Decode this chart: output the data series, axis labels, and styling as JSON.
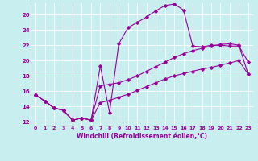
{
  "xlabel": "Windchill (Refroidissement éolien,°C)",
  "bg_color": "#c8eef0",
  "line_color": "#990099",
  "grid_color": "#aadddd",
  "xlim": [
    -0.5,
    23.5
  ],
  "ylim": [
    11.5,
    27.5
  ],
  "xticks": [
    0,
    1,
    2,
    3,
    4,
    5,
    6,
    7,
    8,
    9,
    10,
    11,
    12,
    13,
    14,
    15,
    16,
    17,
    18,
    19,
    20,
    21,
    22,
    23
  ],
  "yticks": [
    12,
    14,
    16,
    18,
    20,
    22,
    24,
    26
  ],
  "line1_x": [
    0,
    1,
    2,
    3,
    4,
    5,
    6,
    7,
    8,
    9,
    10,
    11,
    12,
    13,
    14,
    15,
    16,
    17,
    18,
    19,
    20,
    21,
    22,
    23
  ],
  "line1_y": [
    15.5,
    14.7,
    13.8,
    13.5,
    12.2,
    12.5,
    12.2,
    19.3,
    13.2,
    22.2,
    24.3,
    25.0,
    25.7,
    26.5,
    27.2,
    27.4,
    26.6,
    21.9,
    21.8,
    22.0,
    22.0,
    21.9,
    21.9,
    19.8
  ],
  "line2_x": [
    0,
    1,
    2,
    3,
    4,
    5,
    6,
    7,
    8,
    9,
    10,
    11,
    12,
    13,
    14,
    15,
    16,
    17,
    18,
    19,
    20,
    21,
    22,
    23
  ],
  "line2_y": [
    15.5,
    14.7,
    13.8,
    13.5,
    12.2,
    12.5,
    12.2,
    16.7,
    16.9,
    17.1,
    17.5,
    18.0,
    18.6,
    19.2,
    19.8,
    20.4,
    20.9,
    21.3,
    21.6,
    21.9,
    22.1,
    22.2,
    22.0,
    18.2
  ],
  "line3_x": [
    0,
    1,
    2,
    3,
    4,
    5,
    6,
    7,
    8,
    9,
    10,
    11,
    12,
    13,
    14,
    15,
    16,
    17,
    18,
    19,
    20,
    21,
    22,
    23
  ],
  "line3_y": [
    15.5,
    14.7,
    13.8,
    13.5,
    12.2,
    12.5,
    12.2,
    14.5,
    14.8,
    15.2,
    15.6,
    16.1,
    16.6,
    17.1,
    17.6,
    18.0,
    18.3,
    18.6,
    18.9,
    19.1,
    19.4,
    19.7,
    20.0,
    18.2
  ]
}
